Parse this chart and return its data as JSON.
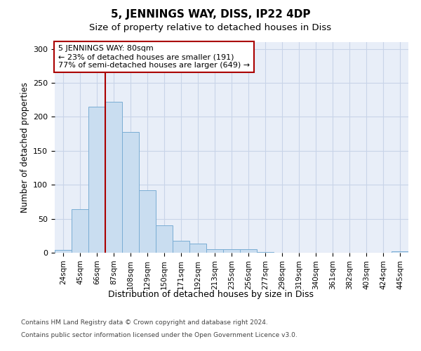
{
  "title1": "5, JENNINGS WAY, DISS, IP22 4DP",
  "title2": "Size of property relative to detached houses in Diss",
  "xlabel": "Distribution of detached houses by size in Diss",
  "ylabel": "Number of detached properties",
  "categories": [
    "24sqm",
    "45sqm",
    "66sqm",
    "87sqm",
    "108sqm",
    "129sqm",
    "150sqm",
    "171sqm",
    "192sqm",
    "213sqm",
    "235sqm",
    "256sqm",
    "277sqm",
    "298sqm",
    "319sqm",
    "340sqm",
    "361sqm",
    "382sqm",
    "403sqm",
    "424sqm",
    "445sqm"
  ],
  "values": [
    4,
    64,
    215,
    222,
    178,
    92,
    40,
    18,
    13,
    5,
    5,
    5,
    1,
    0,
    0,
    0,
    0,
    0,
    0,
    0,
    2
  ],
  "bar_color": "#c9ddf0",
  "bar_edge_color": "#7aadd4",
  "vline_x": 2.5,
  "vline_color": "#aa0000",
  "annotation_line1": "5 JENNINGS WAY: 80sqm",
  "annotation_line2": "← 23% of detached houses are smaller (191)",
  "annotation_line3": "77% of semi-detached houses are larger (649) →",
  "annotation_box_color": "white",
  "annotation_box_edge_color": "#aa0000",
  "ylim": [
    0,
    310
  ],
  "yticks": [
    0,
    50,
    100,
    150,
    200,
    250,
    300
  ],
  "grid_color": "#c8d4e8",
  "background_color": "#e8eef8",
  "footer1": "Contains HM Land Registry data © Crown copyright and database right 2024.",
  "footer2": "Contains public sector information licensed under the Open Government Licence v3.0."
}
